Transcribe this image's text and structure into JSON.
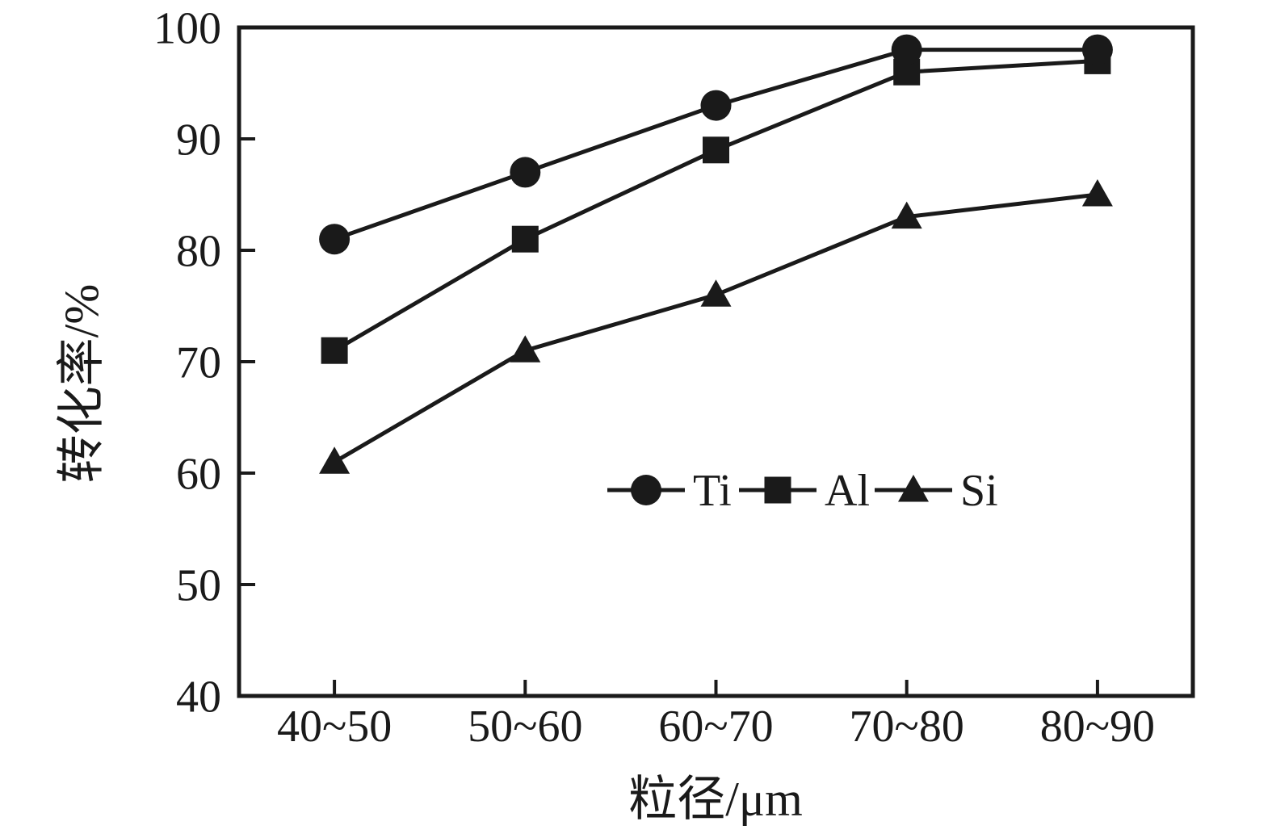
{
  "chart_data": {
    "type": "line",
    "title": "",
    "xlabel": "粒径/μm",
    "ylabel": "转化率/%",
    "categories": [
      "40~50",
      "50~60",
      "60~70",
      "70~80",
      "80~90"
    ],
    "series": [
      {
        "name": "Ti",
        "marker": "circle",
        "values": [
          81,
          87,
          93,
          98,
          98
        ]
      },
      {
        "name": "Al",
        "marker": "square",
        "values": [
          71,
          81,
          89,
          96,
          97
        ]
      },
      {
        "name": "Si",
        "marker": "triangle",
        "values": [
          61,
          71,
          76,
          83,
          85
        ]
      }
    ],
    "ylim": [
      40,
      100
    ],
    "yticks": [
      40,
      50,
      60,
      70,
      80,
      90,
      100
    ],
    "grid": false,
    "legend_position": "inside-bottom-center",
    "legend_labels": [
      "Ti",
      "Al",
      "Si"
    ],
    "line_color": "#1a1a1a",
    "background": "#ffffff"
  }
}
